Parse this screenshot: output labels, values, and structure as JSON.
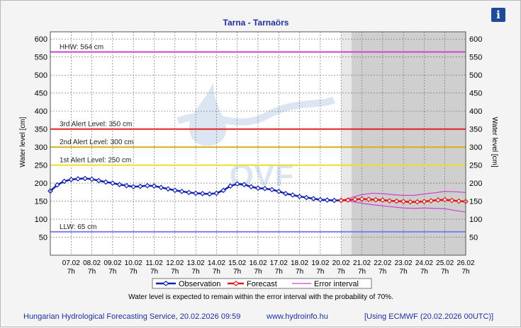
{
  "chart_data": {
    "type": "line",
    "title": "Tarna - Tarnaörs",
    "ylabel": "Water level [cm]",
    "ylim": [
      0,
      620
    ],
    "yticks": [
      50,
      100,
      150,
      200,
      250,
      300,
      350,
      400,
      450,
      500,
      550,
      600
    ],
    "xticks": [
      {
        "date": "07.02",
        "hour": "7h"
      },
      {
        "date": "08.02",
        "hour": "7h"
      },
      {
        "date": "09.02",
        "hour": "7h"
      },
      {
        "date": "10.02",
        "hour": "7h"
      },
      {
        "date": "11.02",
        "hour": "7h"
      },
      {
        "date": "12.02",
        "hour": "7h"
      },
      {
        "date": "13.02",
        "hour": "7h"
      },
      {
        "date": "14.02",
        "hour": "7h"
      },
      {
        "date": "15.02",
        "hour": "7h"
      },
      {
        "date": "16.02",
        "hour": "7h"
      },
      {
        "date": "17.02",
        "hour": "7h"
      },
      {
        "date": "18.02",
        "hour": "7h"
      },
      {
        "date": "19.02",
        "hour": "7h"
      },
      {
        "date": "20.02",
        "hour": "7h"
      },
      {
        "date": "21.02",
        "hour": "7h"
      },
      {
        "date": "22.02",
        "hour": "7h"
      },
      {
        "date": "23.02",
        "hour": "7h"
      },
      {
        "date": "24.02",
        "hour": "7h"
      },
      {
        "date": "25.02",
        "hour": "7h"
      },
      {
        "date": "26.02",
        "hour": "7h"
      }
    ],
    "grid": true,
    "levels": [
      {
        "label": "HHW: 564 cm",
        "value": 564,
        "color": "#d040d0"
      },
      {
        "label": "3rd Alert Level: 350 cm",
        "value": 350,
        "color": "#e02020"
      },
      {
        "label": "2nd Alert Level: 300 cm",
        "value": 300,
        "color": "#d8b020"
      },
      {
        "label": "1st Alert Level: 250 cm",
        "value": 250,
        "color": "#e8e020"
      },
      {
        "label": "LLW: 65 cm",
        "value": 65,
        "color": "#8080f0"
      }
    ],
    "series": [
      {
        "name": "Observation",
        "color": "#1020b0",
        "x": [
          6.0,
          6.33,
          6.67,
          7.0,
          7.33,
          7.67,
          8.0,
          8.33,
          8.67,
          9.0,
          9.33,
          9.67,
          10.0,
          10.33,
          10.67,
          11.0,
          11.33,
          11.67,
          12.0,
          12.33,
          12.67,
          13.0,
          13.33,
          13.67,
          14.0,
          14.33,
          14.67,
          15.0,
          15.33,
          15.67,
          16.0,
          16.33,
          16.67,
          17.0,
          17.33,
          17.67,
          18.0,
          18.33,
          18.67,
          19.0,
          19.33,
          19.67,
          20.0
        ],
        "y": [
          178,
          195,
          205,
          210,
          212,
          213,
          211,
          207,
          203,
          200,
          196,
          193,
          190,
          191,
          193,
          192,
          188,
          184,
          180,
          177,
          174,
          172,
          171,
          170,
          172,
          180,
          192,
          198,
          196,
          190,
          186,
          185,
          182,
          177,
          171,
          167,
          163,
          160,
          157,
          154,
          153,
          152,
          152
        ]
      },
      {
        "name": "Forecast",
        "color": "#e01818",
        "x": [
          20.0,
          20.33,
          20.67,
          21.0,
          21.33,
          21.67,
          22.0,
          22.33,
          22.67,
          23.0,
          23.33,
          23.67,
          24.0,
          24.33,
          24.67,
          25.0,
          25.33,
          25.67,
          26.0
        ],
        "y": [
          152,
          153,
          155,
          156,
          155,
          154,
          153,
          151,
          150,
          149,
          148,
          148,
          149,
          151,
          153,
          154,
          152,
          150,
          149
        ]
      },
      {
        "name": "Error interval",
        "color": "#d040d0",
        "upper_x": [
          20.0,
          20.5,
          21.0,
          21.5,
          22.0,
          22.5,
          23.0,
          23.5,
          24.0,
          24.5,
          25.0,
          25.5,
          26.0
        ],
        "upper": [
          152,
          160,
          168,
          172,
          171,
          168,
          166,
          166,
          170,
          173,
          177,
          176,
          174
        ],
        "lower": [
          152,
          149,
          144,
          140,
          137,
          134,
          131,
          130,
          131,
          130,
          129,
          124,
          120
        ]
      }
    ],
    "forecast_start": 20.0,
    "note": "Water level is expected to remain within the error interval with the probability of 70%."
  },
  "footer": {
    "service": "Hungarian Hydrological Forecasting Service, 20.02.2026 09:59",
    "url": "www.hydroinfo.hu",
    "model": "[Using ECMWF (20.02.2026  00UTC)]"
  },
  "info_label": "i",
  "watermark_text": "OVF"
}
